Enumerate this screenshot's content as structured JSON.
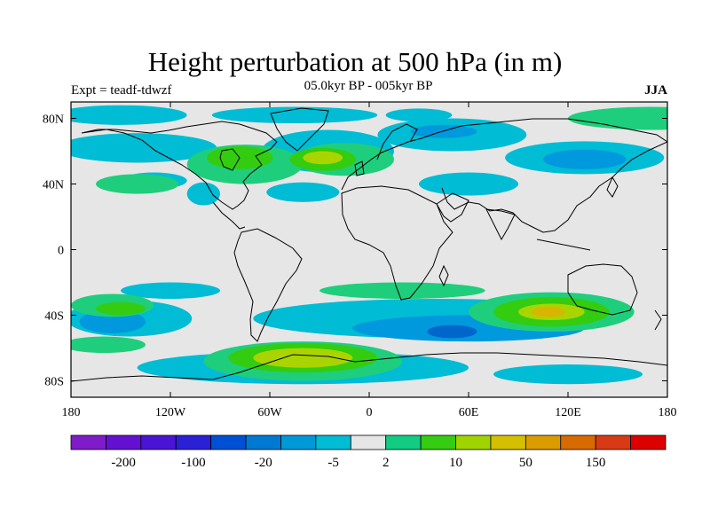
{
  "figure": {
    "title": "Height perturbation at 500 hPa (in m)",
    "subtitle": "05.0kyr BP - 005kyr BP",
    "left_label": "Expt = teadf-tdwzf",
    "right_label": "JJA"
  },
  "map": {
    "lon_range": [
      -180,
      180
    ],
    "lat_range": [
      -90,
      90
    ],
    "background": "#e6e6e6",
    "lon_ticks": [
      {
        "value": -180,
        "label": "180"
      },
      {
        "value": -120,
        "label": "120W"
      },
      {
        "value": -60,
        "label": "60W"
      },
      {
        "value": 0,
        "label": "0"
      },
      {
        "value": 60,
        "label": "60E"
      },
      {
        "value": 120,
        "label": "120E"
      },
      {
        "value": 180,
        "label": "180"
      }
    ],
    "lat_ticks": [
      {
        "value": 80,
        "label": "80N"
      },
      {
        "value": 40,
        "label": "40N"
      },
      {
        "value": 0,
        "label": "0"
      },
      {
        "value": -40,
        "label": "40S"
      },
      {
        "value": -80,
        "label": "80S"
      }
    ],
    "contour_bands": [
      {
        "level": "-5 to 2",
        "color": "#00bcd4",
        "cx": -150,
        "cy": 82,
        "rx": 40,
        "ry": 6
      },
      {
        "level": "-5 to 2",
        "color": "#00bcd4",
        "cx": -45,
        "cy": 82,
        "rx": 50,
        "ry": 5
      },
      {
        "level": "-5 to 2",
        "color": "#00bcd4",
        "cx": 30,
        "cy": 82,
        "rx": 20,
        "ry": 4
      },
      {
        "level": "-5 to 2",
        "color": "#00bcd4",
        "cx": -140,
        "cy": 62,
        "rx": 48,
        "ry": 9
      },
      {
        "level": "-5 to 2",
        "color": "#00bcd4",
        "cx": -25,
        "cy": 60,
        "rx": 40,
        "ry": 13
      },
      {
        "level": "-5 to 2",
        "color": "#00bcd4",
        "cx": 50,
        "cy": 70,
        "rx": 45,
        "ry": 10
      },
      {
        "level": "-5 to 2",
        "color": "#00bcd4",
        "cx": 130,
        "cy": 56,
        "rx": 48,
        "ry": 10
      },
      {
        "level": "-5 to 2",
        "color": "#00bcd4",
        "cx": -130,
        "cy": 42,
        "rx": 20,
        "ry": 5
      },
      {
        "level": "-5 to 2",
        "color": "#00bcd4",
        "cx": -40,
        "cy": 35,
        "rx": 22,
        "ry": 6
      },
      {
        "level": "-5 to 2",
        "color": "#00bcd4",
        "cx": 60,
        "cy": 40,
        "rx": 30,
        "ry": 7
      },
      {
        "level": "-5 to 2",
        "color": "#00bcd4",
        "cx": -100,
        "cy": 34,
        "rx": 10,
        "ry": 7
      },
      {
        "level": "-5 to 2",
        "color": "#00bcd4",
        "cx": -145,
        "cy": -42,
        "rx": 38,
        "ry": 11
      },
      {
        "level": "-5 to 2",
        "color": "#00bcd4",
        "cx": 40,
        "cy": -42,
        "rx": 110,
        "ry": 12
      },
      {
        "level": "-5 to 2",
        "color": "#00bcd4",
        "cx": -40,
        "cy": -72,
        "rx": 100,
        "ry": 10
      },
      {
        "level": "-5 to 2",
        "color": "#00bcd4",
        "cx": 120,
        "cy": -76,
        "rx": 45,
        "ry": 6
      },
      {
        "level": "-5 to 2",
        "color": "#00bcd4",
        "cx": -120,
        "cy": -25,
        "rx": 30,
        "ry": 5
      },
      {
        "level": "-20 to -5",
        "color": "#0099dd",
        "cx": 60,
        "cy": -48,
        "rx": 70,
        "ry": 8
      },
      {
        "level": "-20 to -5",
        "color": "#0099dd",
        "cx": -155,
        "cy": -44,
        "rx": 20,
        "ry": 7
      },
      {
        "level": "-20 to -5",
        "color": "#0099dd",
        "cx": 130,
        "cy": 55,
        "rx": 25,
        "ry": 6
      },
      {
        "level": "-20 to -5",
        "color": "#0099dd",
        "cx": 45,
        "cy": 72,
        "rx": 20,
        "ry": 4
      },
      {
        "level": "-100 to -20",
        "color": "#0066cc",
        "cx": 50,
        "cy": -50,
        "rx": 15,
        "ry": 4
      },
      {
        "level": "2 to 10",
        "color": "#1fce7c",
        "cx": -140,
        "cy": 40,
        "rx": 25,
        "ry": 6
      },
      {
        "level": "2 to 10",
        "color": "#1fce7c",
        "cx": -75,
        "cy": 52,
        "rx": 35,
        "ry": 12
      },
      {
        "level": "2 to 10",
        "color": "#1fce7c",
        "cx": -15,
        "cy": 55,
        "rx": 30,
        "ry": 10
      },
      {
        "level": "2 to 10",
        "color": "#1fce7c",
        "cx": 170,
        "cy": 80,
        "rx": 50,
        "ry": 7
      },
      {
        "level": "2 to 10",
        "color": "#1fce7c",
        "cx": -155,
        "cy": -34,
        "rx": 25,
        "ry": 7
      },
      {
        "level": "2 to 10",
        "color": "#1fce7c",
        "cx": 110,
        "cy": -38,
        "rx": 50,
        "ry": 12
      },
      {
        "level": "2 to 10",
        "color": "#1fce7c",
        "cx": -40,
        "cy": -68,
        "rx": 60,
        "ry": 12
      },
      {
        "level": "2 to 10",
        "color": "#1fce7c",
        "cx": 20,
        "cy": -25,
        "rx": 50,
        "ry": 5
      },
      {
        "level": "2 to 10",
        "color": "#1fce7c",
        "cx": -160,
        "cy": -58,
        "rx": 25,
        "ry": 5
      },
      {
        "level": "10 to 50",
        "color": "#33cc10",
        "cx": -28,
        "cy": 55,
        "rx": 20,
        "ry": 7
      },
      {
        "level": "10 to 50",
        "color": "#33cc10",
        "cx": -78,
        "cy": 56,
        "rx": 20,
        "ry": 7
      },
      {
        "level": "10 to 50",
        "color": "#33cc10",
        "cx": 110,
        "cy": -38,
        "rx": 35,
        "ry": 9
      },
      {
        "level": "10 to 50",
        "color": "#33cc10",
        "cx": -40,
        "cy": -66,
        "rx": 45,
        "ry": 9
      },
      {
        "level": "10 to 50",
        "color": "#33cc10",
        "cx": -150,
        "cy": -36,
        "rx": 15,
        "ry": 4
      },
      {
        "level": "50 to 150",
        "color": "#aad400",
        "cx": -28,
        "cy": 56,
        "rx": 12,
        "ry": 4
      },
      {
        "level": "50 to 150",
        "color": "#aad400",
        "cx": -40,
        "cy": -66,
        "rx": 30,
        "ry": 6
      },
      {
        "level": "50 to 150",
        "color": "#aad400",
        "cx": 110,
        "cy": -38,
        "rx": 20,
        "ry": 5
      },
      {
        "level": "150+",
        "color": "#d9b400",
        "cx": 108,
        "cy": -38,
        "rx": 10,
        "ry": 3
      }
    ]
  },
  "colorbar": {
    "colors": [
      "#7e1cc9",
      "#6310d2",
      "#4a14d5",
      "#2a20d6",
      "#0050d5",
      "#0079d3",
      "#0099d8",
      "#00bcd4",
      "#e6e6e6",
      "#12cc83",
      "#35cc12",
      "#9fd400",
      "#d4c000",
      "#da9c00",
      "#d76b00",
      "#d83a16",
      "#dd0000"
    ],
    "labels": [
      {
        "text": "-200",
        "boundary": 1.5
      },
      {
        "text": "-100",
        "boundary": 3.5
      },
      {
        "text": "-20",
        "boundary": 5.5
      },
      {
        "text": "-5",
        "boundary": 7.5
      },
      {
        "text": "2",
        "boundary": 9.0
      },
      {
        "text": "10",
        "boundary": 11.0
      },
      {
        "text": "50",
        "boundary": 13.0
      },
      {
        "text": "150",
        "boundary": 15.0
      }
    ]
  }
}
